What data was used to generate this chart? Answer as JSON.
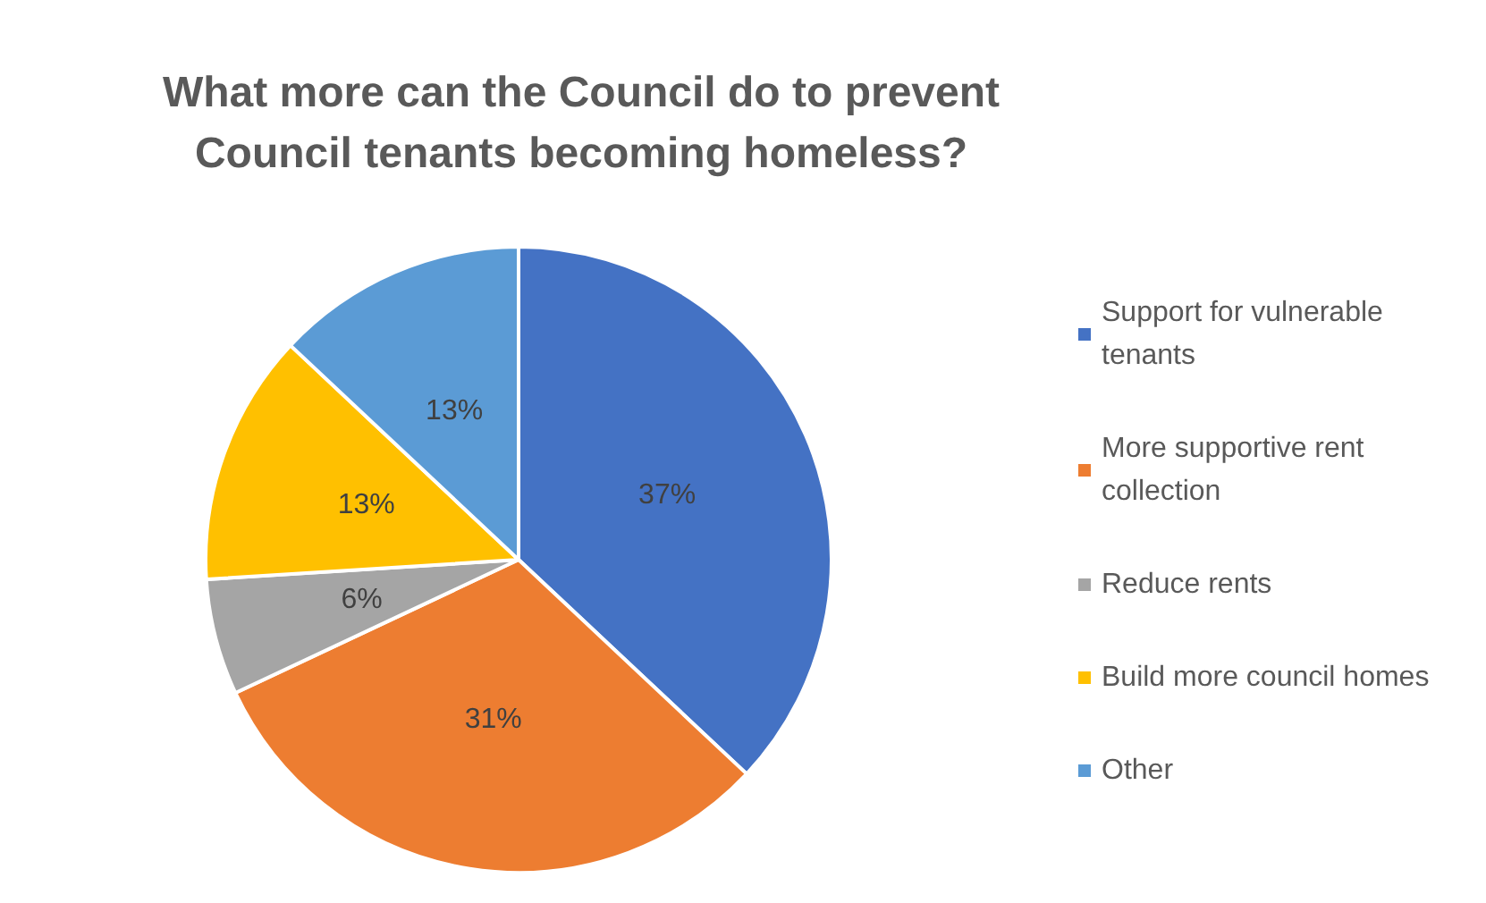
{
  "chart_data": {
    "type": "pie",
    "title": "What more can the Council do to prevent\nCouncil tenants becoming homeless?",
    "categories": [
      "Support for vulnerable tenants",
      "More supportive rent collection",
      "Reduce rents",
      "Build more council homes",
      "Other"
    ],
    "values": [
      37,
      31,
      6,
      13,
      13
    ],
    "colors": [
      "#4472c4",
      "#ed7d31",
      "#a5a5a5",
      "#ffc000",
      "#5b9bd5"
    ],
    "value_labels": [
      "37%",
      "31%",
      "6%",
      "13%",
      "13%"
    ],
    "legend": "right"
  }
}
